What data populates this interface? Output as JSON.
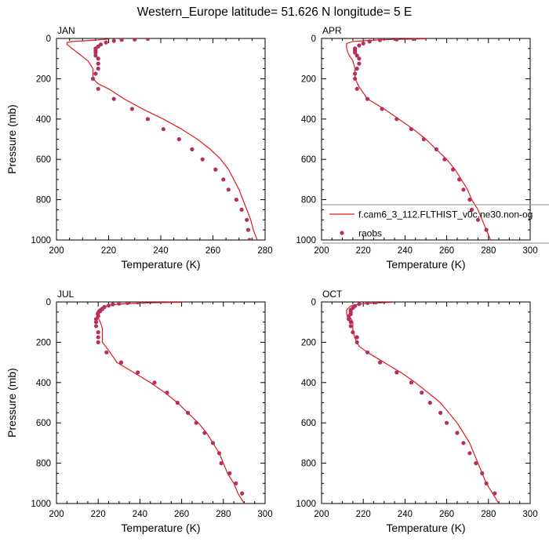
{
  "figure": {
    "title": "Western_Europe  latitude= 51.626 N longitude= 5 E"
  },
  "colors": {
    "model_line": "#e31a1c",
    "raobs_marker": "#b5305f",
    "axis": "#000000",
    "legend_border": "#888888"
  },
  "legend": {
    "model_label": "f.cam6_3_112.FLTHIST_v0c.ne30.non-og",
    "obs_label": "raobs",
    "placement": "right, inside APR panel near bottom"
  },
  "chart_data": [
    {
      "type": "line",
      "panel": "JAN",
      "title": "JAN",
      "xlabel": "Temperature (K)",
      "ylabel": "Pressure (mb)",
      "xlim": [
        200,
        280
      ],
      "ylim": [
        1000,
        0
      ],
      "y_inverted": true,
      "xticks": [
        200,
        220,
        240,
        260,
        280
      ],
      "yticks": [
        0,
        200,
        400,
        600,
        800,
        1000
      ],
      "series": [
        {
          "name": "f.cam6_3_112.FLTHIST_v0c.ne30.non-og",
          "kind": "line",
          "points": [
            [
              220,
              3
            ],
            [
              213,
              10
            ],
            [
              206,
              15
            ],
            [
              204,
              20
            ],
            [
              204,
              30
            ],
            [
              206,
              50
            ],
            [
              209,
              80
            ],
            [
              212,
              110
            ],
            [
              214,
              150
            ],
            [
              214,
              200
            ],
            [
              216,
              225
            ],
            [
              220,
              250
            ],
            [
              226,
              300
            ],
            [
              233,
              350
            ],
            [
              241,
              400
            ],
            [
              248,
              450
            ],
            [
              254,
              500
            ],
            [
              259,
              550
            ],
            [
              263,
              600
            ],
            [
              266,
              650
            ],
            [
              268,
              700
            ],
            [
              270,
              750
            ],
            [
              271.5,
              800
            ],
            [
              273,
              850
            ],
            [
              274.5,
              900
            ],
            [
              275.5,
              950
            ],
            [
              277,
              1000
            ]
          ]
        },
        {
          "name": "raobs",
          "kind": "scatter",
          "points": [
            [
              235,
              2
            ],
            [
              230,
              5
            ],
            [
              225,
              7
            ],
            [
              222,
              12
            ],
            [
              219,
              20
            ],
            [
              217,
              30
            ],
            [
              216,
              40
            ],
            [
              215,
              50
            ],
            [
              215,
              60
            ],
            [
              215,
              70
            ],
            [
              215,
              85
            ],
            [
              216,
              100
            ],
            [
              216,
              125
            ],
            [
              216,
              150
            ],
            [
              215,
              175
            ],
            [
              214,
              200
            ],
            [
              216,
              250
            ],
            [
              222,
              300
            ],
            [
              229,
              350
            ],
            [
              235,
              400
            ],
            [
              241,
              450
            ],
            [
              247,
              500
            ],
            [
              252,
              550
            ],
            [
              256,
              600
            ],
            [
              261,
              650
            ],
            [
              264,
              700
            ],
            [
              266,
              750
            ],
            [
              269,
              800
            ],
            [
              271,
              850
            ],
            [
              273,
              900
            ],
            [
              273.5,
              950
            ],
            [
              274,
              1000
            ]
          ]
        }
      ]
    },
    {
      "type": "line",
      "panel": "APR",
      "title": "APR",
      "xlabel": "Temperature (K)",
      "ylabel": "",
      "xlim": [
        200,
        300
      ],
      "ylim": [
        1000,
        0
      ],
      "y_inverted": true,
      "xticks": [
        200,
        220,
        240,
        260,
        280,
        300
      ],
      "yticks": [
        0,
        200,
        400,
        600,
        800,
        1000
      ],
      "series": [
        {
          "name": "f.cam6_3_112.FLTHIST_v0c.ne30.non-og",
          "kind": "line",
          "points": [
            [
              250,
              2
            ],
            [
              240,
              4
            ],
            [
              230,
              6
            ],
            [
              222,
              10
            ],
            [
              215,
              15
            ],
            [
              212,
              25
            ],
            [
              212,
              50
            ],
            [
              213,
              80
            ],
            [
              215,
              110
            ],
            [
              216,
              150
            ],
            [
              216,
              200
            ],
            [
              218,
              240
            ],
            [
              222,
              300
            ],
            [
              230,
              350
            ],
            [
              237,
              400
            ],
            [
              244,
              450
            ],
            [
              250,
              500
            ],
            [
              255,
              550
            ],
            [
              260,
              600
            ],
            [
              264,
              650
            ],
            [
              267,
              700
            ],
            [
              270,
              750
            ],
            [
              272,
              800
            ],
            [
              275,
              850
            ],
            [
              277,
              900
            ],
            [
              279,
              950
            ],
            [
              281,
              1000
            ]
          ]
        },
        {
          "name": "raobs",
          "kind": "scatter",
          "points": [
            [
              244,
              2
            ],
            [
              236,
              5
            ],
            [
              228,
              8
            ],
            [
              223,
              15
            ],
            [
              220,
              25
            ],
            [
              218,
              35
            ],
            [
              216,
              50
            ],
            [
              216,
              60
            ],
            [
              216,
              70
            ],
            [
              217,
              85
            ],
            [
              218,
              100
            ],
            [
              218,
              125
            ],
            [
              217,
              150
            ],
            [
              216,
              175
            ],
            [
              216,
              200
            ],
            [
              217,
              250
            ],
            [
              222,
              300
            ],
            [
              229,
              350
            ],
            [
              236,
              400
            ],
            [
              243,
              450
            ],
            [
              249,
              500
            ],
            [
              255,
              550
            ],
            [
              259,
              600
            ],
            [
              263,
              650
            ],
            [
              266,
              700
            ],
            [
              268,
              750
            ],
            [
              271,
              800
            ],
            [
              272,
              850
            ],
            [
              275,
              900
            ],
            [
              279,
              950
            ]
          ]
        }
      ]
    },
    {
      "type": "line",
      "panel": "JUL",
      "title": "JUL",
      "xlabel": "Temperature (K)",
      "ylabel": "Pressure (mb)",
      "xlim": [
        200,
        300
      ],
      "ylim": [
        1000,
        0
      ],
      "y_inverted": true,
      "xticks": [
        200,
        220,
        240,
        260,
        280,
        300
      ],
      "yticks": [
        0,
        200,
        400,
        600,
        800,
        1000
      ],
      "series": [
        {
          "name": "f.cam6_3_112.FLTHIST_v0c.ne30.non-og",
          "kind": "line",
          "points": [
            [
              260,
              2
            ],
            [
              245,
              4
            ],
            [
              233,
              8
            ],
            [
              226,
              15
            ],
            [
              222,
              25
            ],
            [
              220,
              40
            ],
            [
              219,
              60
            ],
            [
              220,
              80
            ],
            [
              221,
              100
            ],
            [
              222,
              130
            ],
            [
              222,
              160
            ],
            [
              222,
              200
            ],
            [
              225,
              240
            ],
            [
              229,
              300
            ],
            [
              237,
              350
            ],
            [
              245,
              400
            ],
            [
              252,
              450
            ],
            [
              258,
              500
            ],
            [
              263,
              550
            ],
            [
              268,
              600
            ],
            [
              272,
              650
            ],
            [
              275,
              700
            ],
            [
              278,
              750
            ],
            [
              280,
              800
            ],
            [
              282,
              850
            ],
            [
              285,
              900
            ],
            [
              287,
              950
            ],
            [
              290,
              1000
            ]
          ]
        },
        {
          "name": "raobs",
          "kind": "scatter",
          "points": [
            [
              239,
              2
            ],
            [
              234,
              5
            ],
            [
              230,
              8
            ],
            [
              227,
              12
            ],
            [
              225,
              18
            ],
            [
              223,
              25
            ],
            [
              222,
              35
            ],
            [
              221,
              45
            ],
            [
              220,
              55
            ],
            [
              220,
              70
            ],
            [
              219,
              85
            ],
            [
              219,
              100
            ],
            [
              219,
              120
            ],
            [
              220,
              150
            ],
            [
              220,
              175
            ],
            [
              220,
              200
            ],
            [
              224,
              250
            ],
            [
              231,
              300
            ],
            [
              239,
              350
            ],
            [
              247,
              400
            ],
            [
              253,
              450
            ],
            [
              258,
              500
            ],
            [
              263,
              550
            ],
            [
              267,
              600
            ],
            [
              271,
              650
            ],
            [
              275,
              700
            ],
            [
              278,
              750
            ],
            [
              279,
              800
            ],
            [
              283,
              850
            ],
            [
              286,
              900
            ],
            [
              289,
              950
            ]
          ]
        }
      ]
    },
    {
      "type": "line",
      "panel": "OCT",
      "title": "OCT",
      "xlabel": "Temperature (K)",
      "ylabel": "",
      "xlim": [
        200,
        300
      ],
      "ylim": [
        1000,
        0
      ],
      "y_inverted": true,
      "xticks": [
        200,
        220,
        240,
        260,
        280,
        300
      ],
      "yticks": [
        0,
        200,
        400,
        600,
        800,
        1000
      ],
      "series": [
        {
          "name": "f.cam6_3_112.FLTHIST_v0c.ne30.non-og",
          "kind": "line",
          "points": [
            [
              234,
              2
            ],
            [
              225,
              5
            ],
            [
              218,
              10
            ],
            [
              214,
              20
            ],
            [
              212,
              40
            ],
            [
              212,
              60
            ],
            [
              214,
              80
            ],
            [
              215,
              100
            ],
            [
              215,
              140
            ],
            [
              216,
              180
            ],
            [
              218,
              220
            ],
            [
              222,
              250
            ],
            [
              230,
              300
            ],
            [
              238,
              350
            ],
            [
              245,
              400
            ],
            [
              251,
              450
            ],
            [
              257,
              500
            ],
            [
              261,
              550
            ],
            [
              265,
              600
            ],
            [
              268,
              650
            ],
            [
              271,
              700
            ],
            [
              273,
              750
            ],
            [
              275,
              800
            ],
            [
              277,
              850
            ],
            [
              279,
              900
            ],
            [
              282,
              950
            ],
            [
              285,
              1000
            ]
          ]
        },
        {
          "name": "raobs",
          "kind": "scatter",
          "points": [
            [
              226,
              2
            ],
            [
              222,
              5
            ],
            [
              218,
              10
            ],
            [
              216,
              20
            ],
            [
              215,
              30
            ],
            [
              214,
              40
            ],
            [
              214,
              50
            ],
            [
              214,
              60
            ],
            [
              213,
              70
            ],
            [
              213,
              85
            ],
            [
              214,
              100
            ],
            [
              214,
              120
            ],
            [
              215,
              150
            ],
            [
              217,
              175
            ],
            [
              217,
              200
            ],
            [
              222,
              250
            ],
            [
              228,
              300
            ],
            [
              236,
              350
            ],
            [
              243,
              400
            ],
            [
              248,
              450
            ],
            [
              252,
              500
            ],
            [
              257,
              550
            ],
            [
              260,
              600
            ],
            [
              265,
              650
            ],
            [
              268,
              700
            ],
            [
              271,
              750
            ],
            [
              274,
              800
            ],
            [
              277,
              850
            ],
            [
              279,
              900
            ],
            [
              283,
              950
            ]
          ]
        }
      ]
    }
  ]
}
